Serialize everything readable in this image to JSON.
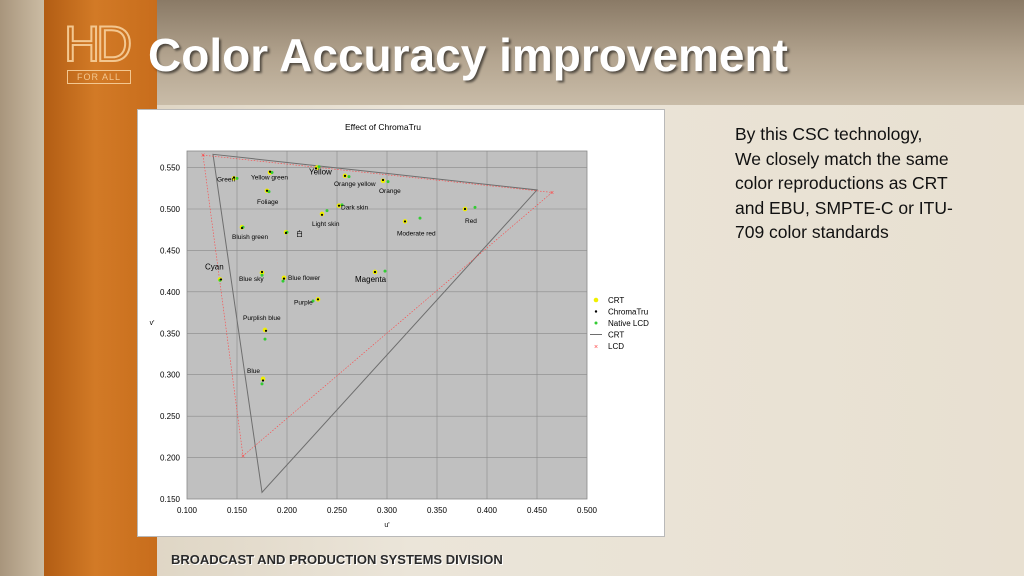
{
  "slide": {
    "title": "Color Accuracy improvement",
    "logo": {
      "main": "HD",
      "tag": "FOR ALL"
    },
    "description": [
      "By this CSC technology,",
      "We closely match the same",
      "color reproductions as CRT",
      "and EBU, SMPTE-C or ITU-",
      "709 color standards"
    ],
    "footer": "BROADCAST AND PRODUCTION SYSTEMS DIVISION"
  },
  "colors": {
    "crt_point": "#f0f000",
    "chromatru_point": "#000000",
    "native_lcd_point": "#33cc33",
    "crt_line": "#6e6e6e",
    "lcd_line": "#ff4444",
    "plot_bg": "#c0c0c0",
    "orange": "#d27a26"
  },
  "chart_data": {
    "type": "scatter",
    "title": "Effect of ChromaTru",
    "xlabel": "u'",
    "ylabel": "v'",
    "xlim": [
      0.1,
      0.5
    ],
    "ylim": [
      0.15,
      0.57
    ],
    "xticks": [
      "0.100",
      "0.150",
      "0.200",
      "0.250",
      "0.300",
      "0.350",
      "0.400",
      "0.450",
      "0.500"
    ],
    "yticks": [
      "0.150",
      "0.200",
      "0.250",
      "0.300",
      "0.350",
      "0.400",
      "0.450",
      "0.500",
      "0.550"
    ],
    "grid": true,
    "legend_position": "right",
    "legend": [
      "CRT",
      "ChromaTru",
      "Native LCD",
      "CRT",
      "LCD"
    ],
    "points": [
      {
        "label": "Green",
        "crt": [
          0.147,
          0.537
        ],
        "chromatru": [
          0.147,
          0.538
        ],
        "lcd": [
          0.15,
          0.537
        ]
      },
      {
        "label": "Yellow green",
        "crt": [
          0.183,
          0.544
        ],
        "chromatru": [
          0.183,
          0.545
        ],
        "lcd": [
          0.185,
          0.544
        ]
      },
      {
        "label": "Yellow",
        "crt": [
          0.23,
          0.55
        ],
        "chromatru": [
          0.229,
          0.549
        ],
        "lcd": [
          0.232,
          0.551
        ]
      },
      {
        "label": "Orange yellow",
        "crt": [
          0.258,
          0.54
        ],
        "chromatru": [
          0.258,
          0.54
        ],
        "lcd": [
          0.262,
          0.539
        ]
      },
      {
        "label": "Orange",
        "crt": [
          0.296,
          0.534
        ],
        "chromatru": [
          0.296,
          0.535
        ],
        "lcd": [
          0.301,
          0.533
        ]
      },
      {
        "label": "Foliage",
        "crt": [
          0.18,
          0.522
        ],
        "chromatru": [
          0.18,
          0.522
        ],
        "lcd": [
          0.182,
          0.521
        ]
      },
      {
        "label": "Dark skin",
        "crt": [
          0.252,
          0.504
        ],
        "chromatru": [
          0.252,
          0.504
        ],
        "lcd": [
          0.255,
          0.505
        ]
      },
      {
        "label": "Light skin",
        "crt": [
          0.235,
          0.494
        ],
        "chromatru": [
          0.235,
          0.493
        ],
        "lcd": [
          0.24,
          0.498
        ]
      },
      {
        "label": "Red",
        "crt": [
          0.378,
          0.5
        ],
        "chromatru": [
          0.378,
          0.5
        ],
        "lcd": [
          0.388,
          0.502
        ]
      },
      {
        "label": "Moderate red",
        "crt": [
          0.318,
          0.485
        ],
        "chromatru": [
          0.318,
          0.485
        ],
        "lcd": [
          0.333,
          0.489
        ]
      },
      {
        "label": "Bluish green",
        "crt": [
          0.155,
          0.478
        ],
        "chromatru": [
          0.155,
          0.477
        ],
        "lcd": [
          0.156,
          0.478
        ]
      },
      {
        "label": "白",
        "crt": [
          0.199,
          0.472
        ],
        "chromatru": [
          0.199,
          0.471
        ],
        "lcd": [
          0.2,
          0.472
        ]
      },
      {
        "label": "Cyan",
        "crt": [
          0.133,
          0.415
        ],
        "chromatru": [
          0.134,
          0.415
        ],
        "lcd": [
          0.133,
          0.414
        ]
      },
      {
        "label": "Blue sky",
        "crt": [
          0.175,
          0.423
        ],
        "chromatru": [
          0.175,
          0.424
        ],
        "lcd": [
          0.175,
          0.42
        ]
      },
      {
        "label": "Blue flower",
        "crt": [
          0.197,
          0.417
        ],
        "chromatru": [
          0.197,
          0.416
        ],
        "lcd": [
          0.196,
          0.413
        ]
      },
      {
        "label": "Magenta",
        "crt": [
          0.288,
          0.424
        ],
        "chromatru": [
          0.288,
          0.424
        ],
        "lcd": [
          0.298,
          0.425
        ]
      },
      {
        "label": "Purple",
        "crt": [
          0.231,
          0.391
        ],
        "chromatru": [
          0.231,
          0.391
        ],
        "lcd": [
          0.226,
          0.389
        ]
      },
      {
        "label": "Purplish blue",
        "crt": [
          0.178,
          0.354
        ],
        "chromatru": [
          0.179,
          0.353
        ],
        "lcd": [
          0.178,
          0.343
        ]
      },
      {
        "label": "Blue",
        "crt": [
          0.176,
          0.295
        ],
        "chromatru": [
          0.176,
          0.293
        ],
        "lcd": [
          0.175,
          0.289
        ]
      }
    ],
    "crt_gamut": [
      [
        0.126,
        0.566
      ],
      [
        0.45,
        0.523
      ],
      [
        0.175,
        0.158
      ]
    ],
    "lcd_gamut": [
      [
        0.116,
        0.565
      ],
      [
        0.465,
        0.52
      ],
      [
        0.156,
        0.202
      ]
    ]
  }
}
